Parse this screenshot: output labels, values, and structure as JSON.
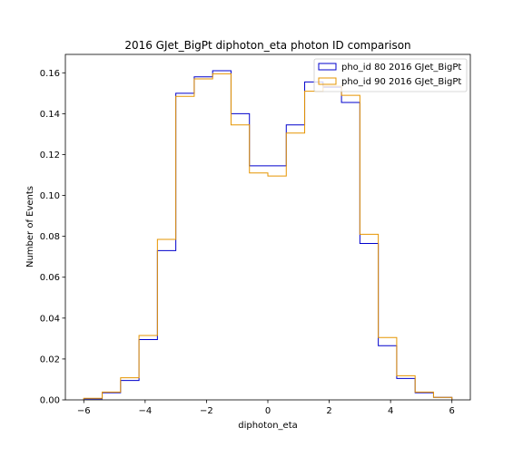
{
  "chart_data": {
    "type": "step",
    "title": "2016 GJet_BigPt diphoton_eta photon ID comparison",
    "xlabel": "diphoton_eta",
    "ylabel": "Number of Events",
    "xlim": [
      -6.6,
      6.6
    ],
    "ylim": [
      0,
      0.169
    ],
    "xticks": [
      -6,
      -4,
      -2,
      0,
      2,
      4,
      6
    ],
    "xtick_labels": [
      "−6",
      "−4",
      "−2",
      "0",
      "2",
      "4",
      "6"
    ],
    "yticks": [
      0.0,
      0.02,
      0.04,
      0.06,
      0.08,
      0.1,
      0.12,
      0.14,
      0.16
    ],
    "ytick_labels": [
      "0.00",
      "0.02",
      "0.04",
      "0.06",
      "0.08",
      "0.10",
      "0.12",
      "0.14",
      "0.16"
    ],
    "bin_edges": [
      -6.0,
      -5.4,
      -4.8,
      -4.2,
      -3.6,
      -3.0,
      -2.4,
      -1.8,
      -1.2,
      -0.6,
      0.0,
      0.6,
      1.2,
      1.8,
      2.4,
      3.0,
      3.6,
      4.2,
      4.8,
      5.4,
      6.0
    ],
    "legend_position": "top-right",
    "series": [
      {
        "name": "pho_id 80 2016 GJet_BigPt",
        "color": "#0000cc",
        "values": [
          0.0005,
          0.0035,
          0.0095,
          0.0295,
          0.073,
          0.15,
          0.158,
          0.161,
          0.14,
          0.1145,
          0.1145,
          0.1345,
          0.1555,
          0.153,
          0.1455,
          0.0765,
          0.0265,
          0.0105,
          0.0035,
          0.0012
        ]
      },
      {
        "name": "pho_id 90 2016 GJet_BigPt",
        "color": "#e69500",
        "values": [
          0.0008,
          0.0038,
          0.0108,
          0.0315,
          0.0785,
          0.1485,
          0.157,
          0.1595,
          0.1345,
          0.111,
          0.1095,
          0.1305,
          0.151,
          0.1535,
          0.149,
          0.081,
          0.0305,
          0.0118,
          0.0038,
          0.0012
        ]
      }
    ]
  }
}
